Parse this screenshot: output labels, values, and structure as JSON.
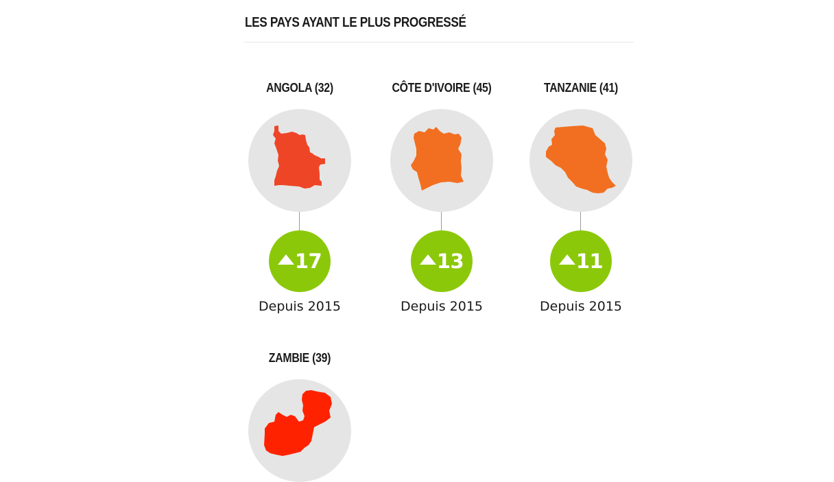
{
  "section": {
    "title": "LES PAYS AYANT LE PLUS PROGRESSÉ"
  },
  "countries": [
    {
      "name": "ANGOLA (32)",
      "map_icon": "angola-map-icon",
      "map_color": "#ef4527",
      "change": "17",
      "since": "Depuis 2015"
    },
    {
      "name": "CÔTE D'IVOIRE (45)",
      "map_icon": "cote-divoire-map-icon",
      "map_color": "#f26f21",
      "change": "13",
      "since": "Depuis 2015"
    },
    {
      "name": "TANZANIE (41)",
      "map_icon": "tanzania-map-icon",
      "map_color": "#f26f21",
      "change": "11",
      "since": "Depuis 2015"
    },
    {
      "name": "ZAMBIE (39)",
      "map_icon": "zambia-map-icon",
      "map_color": "#ff2200"
    }
  ],
  "colors": {
    "badge_green": "#8cc80a",
    "circle_grey": "#e5e5e5"
  }
}
